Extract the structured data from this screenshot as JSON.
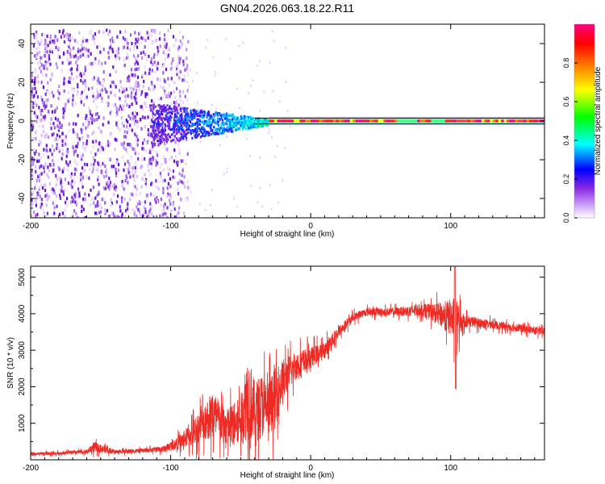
{
  "title": "GN04.2026.063.18.22.R11",
  "chart_data": [
    {
      "type": "heatmap",
      "xlabel": "Height of straight line (km)",
      "ylabel": "Frequency (Hz)",
      "xlim": [
        -200,
        167
      ],
      "ylim": [
        -50,
        50
      ],
      "xticks": [
        -200,
        -100,
        0,
        100
      ],
      "yticks": [
        -40,
        -20,
        0,
        20,
        40
      ],
      "colorbar": {
        "label": "Normalized spectral amplitude",
        "range": [
          0,
          1
        ],
        "ticks": [
          "0.0",
          "0.2",
          "0.4",
          "0.6",
          "0.8"
        ],
        "colors": [
          "#ffffff",
          "#d8b8ff",
          "#8a2be2",
          "#0000ff",
          "#00ffff",
          "#00ff00",
          "#ffff00",
          "#ff8000",
          "#ff0000",
          "#ff0080"
        ]
      },
      "regions": [
        {
          "label": "broadband noise",
          "x_range": [
            -200,
            -100
          ],
          "freq_range": [
            -50,
            48
          ],
          "amplitude": 0.1
        },
        {
          "label": "transition",
          "x_range": [
            -115,
            -30
          ],
          "freq_range": [
            -15,
            10
          ],
          "amplitude": 0.35
        },
        {
          "label": "carrier line",
          "x_range": [
            -30,
            167
          ],
          "freq_range": [
            -1,
            1
          ],
          "amplitude": 0.95
        }
      ]
    },
    {
      "type": "line",
      "xlabel": "Height of straight line (km)",
      "ylabel": "SNR (10 * v/v)",
      "xlim": [
        -200,
        167
      ],
      "ylim": [
        0,
        5300
      ],
      "xticks": [
        -200,
        -100,
        0,
        100
      ],
      "yticks": [
        1000,
        2000,
        3000,
        4000,
        5000
      ],
      "color": "#ee2a24",
      "series": [
        {
          "name": "SNR",
          "x": [
            -200,
            -180,
            -160,
            -155,
            -140,
            -120,
            -105,
            -95,
            -85,
            -75,
            -70,
            -60,
            -50,
            -45,
            -40,
            -35,
            -30,
            -25,
            -20,
            -10,
            0,
            10,
            20,
            30,
            40,
            60,
            80,
            90,
            100,
            103,
            110,
            130,
            150,
            167
          ],
          "mean": [
            150,
            180,
            220,
            350,
            220,
            250,
            300,
            450,
            700,
            1100,
            1200,
            900,
            1050,
            1800,
            1300,
            1500,
            1400,
            1700,
            2200,
            2600,
            2800,
            3000,
            3500,
            3900,
            4050,
            4050,
            4100,
            4000,
            3900,
            3800,
            3800,
            3700,
            3600,
            3500
          ],
          "noise": [
            80,
            80,
            100,
            250,
            100,
            100,
            150,
            300,
            600,
            900,
            1300,
            900,
            1200,
            2200,
            1500,
            1600,
            1400,
            1500,
            1000,
            700,
            500,
            400,
            300,
            200,
            200,
            200,
            300,
            500,
            900,
            1200,
            300,
            200,
            200,
            200
          ]
        }
      ]
    }
  ]
}
